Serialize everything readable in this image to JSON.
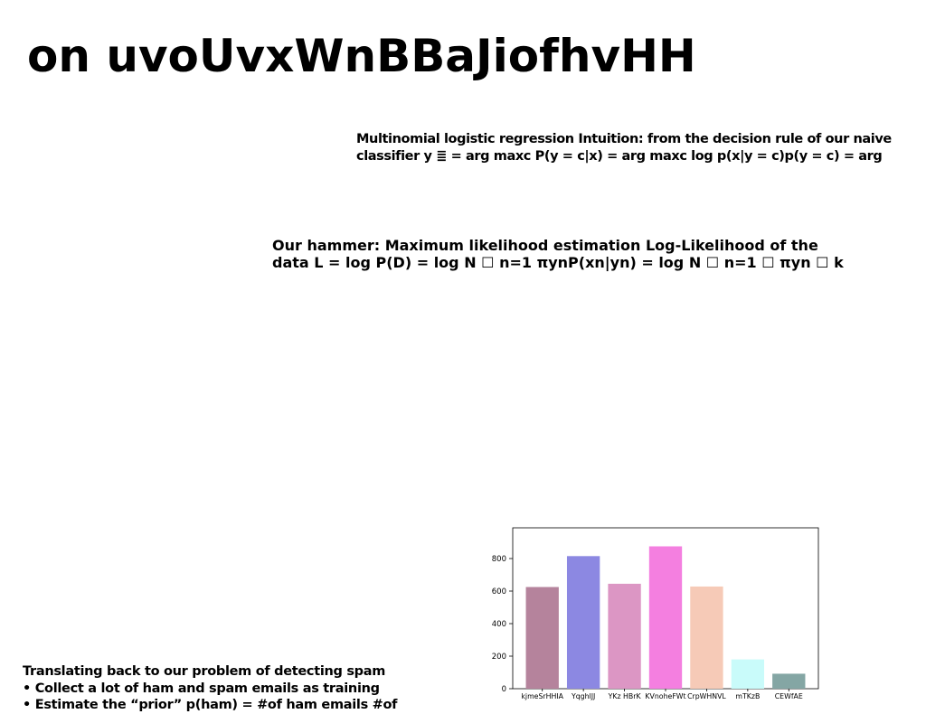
{
  "slide": {
    "title": "on uvoUvxWnBBaJiofhvHH",
    "block1": [
      "Multinomial logistic regression Intuition: from the decision rule of our naive",
      "classifier y ≣ = arg maxc P(y = c|x) = arg maxc log p(x|y = c)p(y = c) = arg"
    ],
    "block2": [
      "Our hammer: Maximum likelihood estimation Log-Likelihood of the",
      "data L = log P(D) = log N ☐ n=1 πynP(xn|yn) = log N ☐ n=1 ☐ πyn ☐ k"
    ],
    "block3": [
      "Translating back to our problem of detecting spam",
      "• Collect a lot of ham and spam emails as training",
      "• Estimate the “prior” p(ham) = #of ham emails #of"
    ]
  },
  "chart_data": {
    "type": "bar",
    "categories": [
      "kjmeSrHHIA",
      "YqghlJJ",
      "YKz HBrK",
      "KVnoheFWt",
      "CrpWHNVL",
      "mTKzB",
      "CEWfAE"
    ],
    "values": [
      625,
      815,
      645,
      875,
      628,
      180,
      92
    ],
    "colors": [
      "#b5839c",
      "#8c88e2",
      "#dc96c4",
      "#f47fe0",
      "#f6cab7",
      "#c9fbfa",
      "#84a6a4"
    ],
    "yticks": [
      0,
      200,
      400,
      600,
      800
    ],
    "ylim": [
      0,
      950
    ],
    "grid": false,
    "title": "",
    "xlabel": "",
    "ylabel": ""
  }
}
